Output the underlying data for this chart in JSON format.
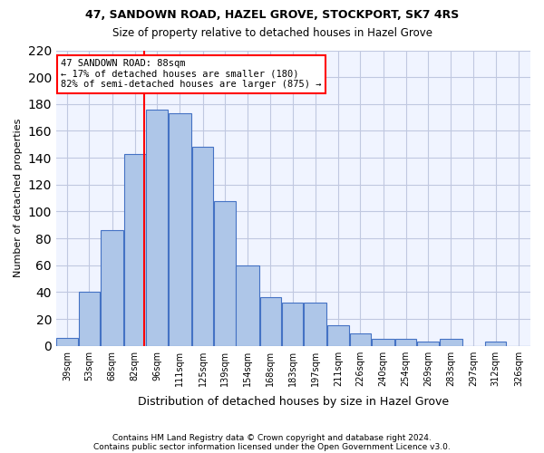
{
  "title_line1": "47, SANDOWN ROAD, HAZEL GROVE, STOCKPORT, SK7 4RS",
  "title_line2": "Size of property relative to detached houses in Hazel Grove",
  "xlabel": "Distribution of detached houses by size in Hazel Grove",
  "ylabel": "Number of detached properties",
  "footnote1": "Contains HM Land Registry data © Crown copyright and database right 2024.",
  "footnote2": "Contains public sector information licensed under the Open Government Licence v3.0.",
  "annotation_line1": "47 SANDOWN ROAD: 88sqm",
  "annotation_line2": "← 17% of detached houses are smaller (180)",
  "annotation_line3": "82% of semi-detached houses are larger (875) →",
  "property_size": 88,
  "bar_categories": [
    "39sqm",
    "53sqm",
    "68sqm",
    "82sqm",
    "96sqm",
    "111sqm",
    "125sqm",
    "139sqm",
    "154sqm",
    "168sqm",
    "183sqm",
    "197sqm",
    "211sqm",
    "226sqm",
    "240sqm",
    "254sqm",
    "269sqm",
    "283sqm",
    "297sqm",
    "312sqm",
    "326sqm"
  ],
  "bar_values": [
    6,
    40,
    86,
    143,
    176,
    173,
    148,
    108,
    60,
    36,
    32,
    32,
    15,
    9,
    5,
    5,
    3,
    5,
    0,
    3,
    0
  ],
  "bar_edges": [
    32,
    46,
    60,
    75,
    89,
    103,
    118,
    132,
    146,
    161,
    175,
    189,
    204,
    218,
    232,
    247,
    261,
    275,
    290,
    304,
    318,
    333
  ],
  "bar_color": "#aec6e8",
  "bar_edge_color": "#4472c4",
  "vline_x": 88,
  "vline_color": "red",
  "annotation_box_color": "red",
  "background_color": "#f0f4ff",
  "grid_color": "#c0c8e0",
  "ylim": [
    0,
    220
  ],
  "yticks": [
    0,
    20,
    40,
    60,
    80,
    100,
    120,
    140,
    160,
    180,
    200,
    220
  ]
}
